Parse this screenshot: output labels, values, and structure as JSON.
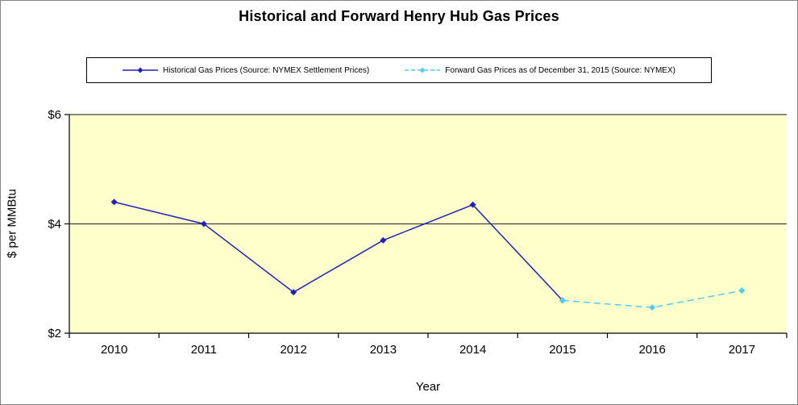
{
  "title": "Historical and Forward Henry Hub Gas Prices",
  "legend": {
    "items": [
      {
        "label": "Historical Gas Prices (Source: NYMEX Settlement Prices)"
      },
      {
        "label": "Forward Gas Prices as of December 31, 2015 (Source: NYMEX)"
      }
    ]
  },
  "chart_data": {
    "type": "line",
    "title": "Historical and Forward Henry Hub Gas Prices",
    "xlabel": "Year",
    "ylabel": "$ per MMBtu",
    "categories": [
      2010,
      2011,
      2012,
      2013,
      2014,
      2015,
      2016,
      2017
    ],
    "series": [
      {
        "name": "Historical Gas Prices (Source: NYMEX Settlement Prices)",
        "color": "#2222BB",
        "line_style": "solid",
        "marker": "diamond",
        "x": [
          2010,
          2011,
          2012,
          2013,
          2014,
          2015
        ],
        "values": [
          4.4,
          4.0,
          2.75,
          3.7,
          4.35,
          2.6
        ]
      },
      {
        "name": "Forward Gas Prices as of December 31, 2015 (Source: NYMEX)",
        "color": "#55CCEE",
        "line_style": "dashed",
        "marker": "diamond",
        "x": [
          2015,
          2016,
          2017
        ],
        "values": [
          2.6,
          2.47,
          2.78
        ]
      }
    ],
    "ylim": [
      2,
      6
    ],
    "yticks": [
      2,
      4,
      6
    ],
    "ytick_labels": [
      "$2",
      "$4",
      "$6"
    ],
    "gridlines_at": [
      4,
      6
    ],
    "plot_bg": "#FFFFCC",
    "axis_color": "#000000",
    "gridline_color": "#404040",
    "legend_position": "top",
    "grid": "horizontal-only"
  }
}
